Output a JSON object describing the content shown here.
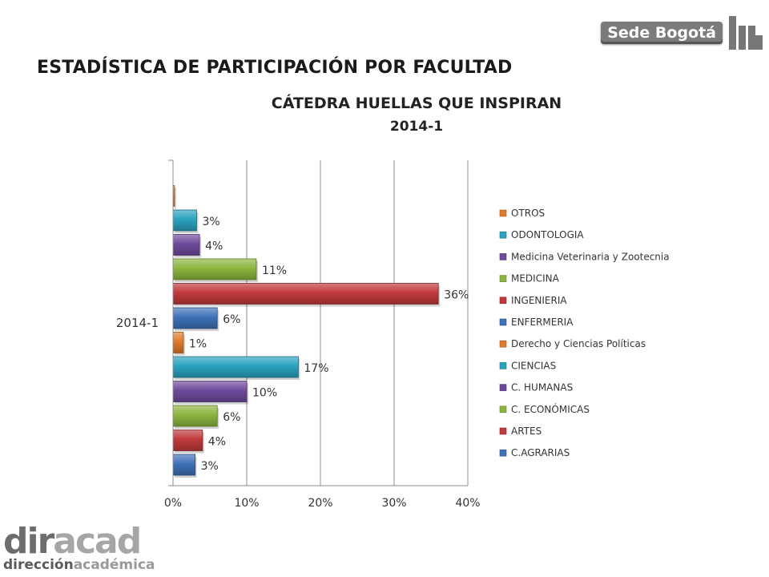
{
  "header": {
    "page_title": "ESTADÍSTICA DE PARTICIPACIÓN POR FACULTAD",
    "logo_text": "Sede Bogotá"
  },
  "footer": {
    "logo_big_1": "dir",
    "logo_big_2": "acad",
    "logo_small_1": "dirección",
    "logo_small_2": "académica"
  },
  "chart_data": {
    "type": "bar",
    "orientation": "horizontal",
    "title": "CÁTEDRA HUELLAS QUE INSPIRAN",
    "subtitle": "2014-1",
    "category": "2014-1",
    "xlim": [
      0,
      40
    ],
    "x_ticks": [
      "0%",
      "10%",
      "20%",
      "30%",
      "40%"
    ],
    "grid": "vertical",
    "legend_position": "right",
    "series": [
      {
        "name": "C.AGRARIAS",
        "value": 3,
        "label": "3%",
        "color": "#3f72b8"
      },
      {
        "name": "ARTES",
        "value": 4,
        "label": "4%",
        "color": "#c0393b"
      },
      {
        "name": "C. ECONÓMICAS",
        "value": 6,
        "label": "6%",
        "color": "#8cb53f"
      },
      {
        "name": "C. HUMANAS",
        "value": 10,
        "label": "10%",
        "color": "#6f4a9b"
      },
      {
        "name": "CIENCIAS",
        "value": 17,
        "label": "17%",
        "color": "#2aa3bf"
      },
      {
        "name": "Derecho y Ciencias Políticas",
        "value": 1.4,
        "label": "1%",
        "color": "#e07b2a"
      },
      {
        "name": "ENFERMERIA",
        "value": 6,
        "label": "6%",
        "color": "#3f72b8"
      },
      {
        "name": "INGENIERIA",
        "value": 36,
        "label": "36%",
        "color": "#c0393b"
      },
      {
        "name": "MEDICINA",
        "value": 11.3,
        "label": "11%",
        "color": "#8cb53f"
      },
      {
        "name": "Medicina Veterinaria y Zootecnia",
        "value": 3.6,
        "label": "4%",
        "color": "#6f4a9b"
      },
      {
        "name": "ODONTOLOGIA",
        "value": 3.2,
        "label": "3%",
        "color": "#2aa3bf"
      },
      {
        "name": "OTROS",
        "value": 0.2,
        "label": "",
        "color": "#e07b2a"
      }
    ]
  }
}
